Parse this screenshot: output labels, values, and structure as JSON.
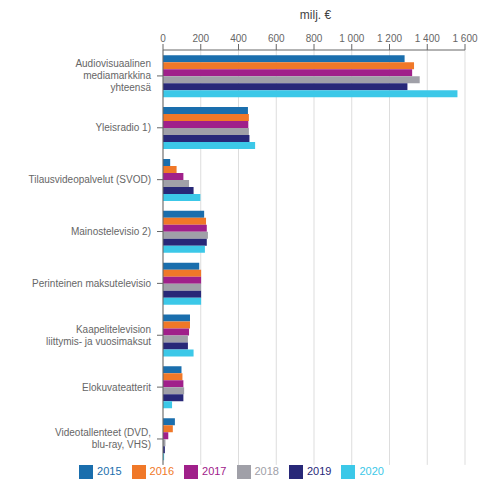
{
  "chart_data": {
    "type": "bar",
    "orientation": "horizontal",
    "categories": [
      "Audiovisuaalinen mediamarkkina\nyhteensä",
      "Yleisradio 1)",
      "Tilausvideopalvelut (SVOD)",
      "Mainostelevisio 2)",
      "Perinteinen maksutelevisio",
      "Kaapelitelevision liittymis- ja vuosimaksut",
      "Elokuvateatterit",
      "Videotallenteet (DVD, blu-ray, VHS)"
    ],
    "series": [
      {
        "name": "2015",
        "color": "#1A6EAD",
        "values": [
          1280,
          450,
          38,
          218,
          192,
          143,
          98,
          63
        ]
      },
      {
        "name": "2016",
        "color": "#F07828",
        "values": [
          1330,
          455,
          72,
          228,
          202,
          143,
          103,
          52
        ]
      },
      {
        "name": "2017",
        "color": "#A0208A",
        "values": [
          1320,
          452,
          108,
          232,
          202,
          138,
          108,
          28
        ]
      },
      {
        "name": "2018",
        "color": "#A0A0A8",
        "values": [
          1360,
          455,
          138,
          238,
          202,
          132,
          112,
          13
        ]
      },
      {
        "name": "2019",
        "color": "#282878",
        "values": [
          1295,
          458,
          162,
          232,
          202,
          132,
          108,
          10
        ]
      },
      {
        "name": "2020",
        "color": "#3CC8E8",
        "values": [
          1560,
          488,
          198,
          222,
          202,
          162,
          48,
          6
        ]
      }
    ],
    "xlabel": "milj. €",
    "xlim": [
      0,
      1600
    ],
    "xticks": [
      0,
      200,
      400,
      600,
      800,
      {
        "value": 1000,
        "label": "1 000"
      },
      {
        "value": 1200,
        "label": "1 200"
      },
      {
        "value": 1400,
        "label": "1 400"
      },
      {
        "value": 1600,
        "label": "1 600"
      }
    ],
    "grid": true,
    "legend": "bottom"
  }
}
